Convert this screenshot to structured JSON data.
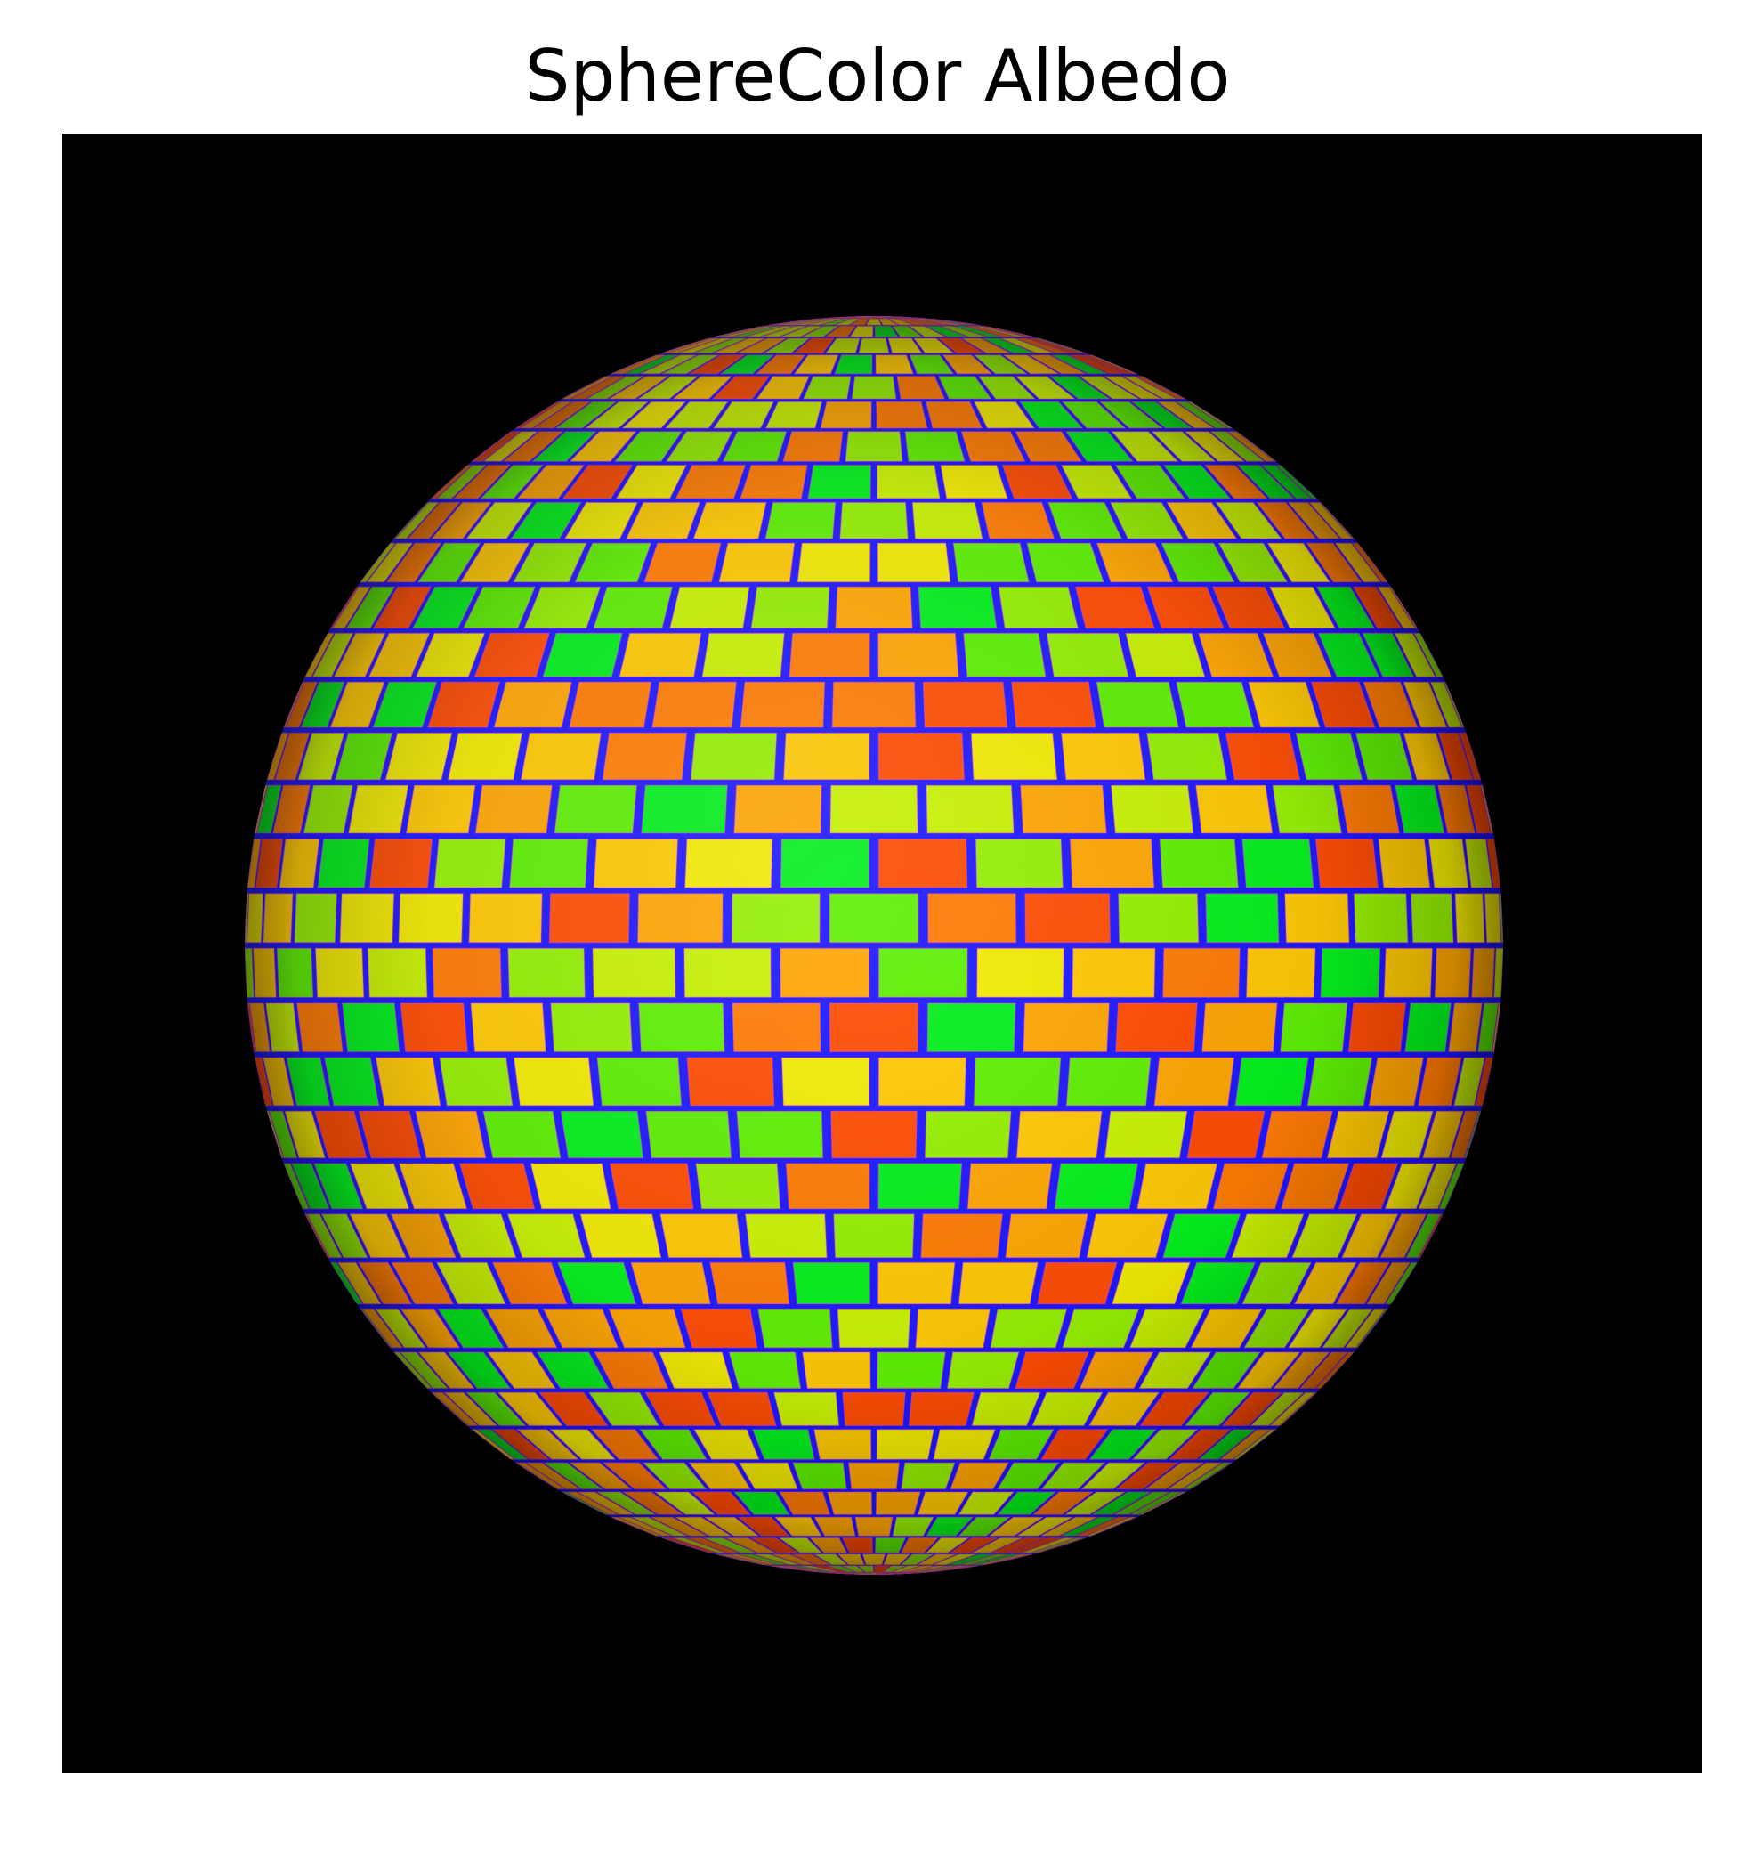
{
  "figure": {
    "title": "SphereColor Albedo",
    "background_color": "#000000",
    "page_color": "#ffffff"
  },
  "sphere": {
    "mortar_color": "#1a14ff",
    "mortar_glow_color": "#ff3cc8",
    "brick_palette": [
      "#ff4a00",
      "#ff7a00",
      "#ffa500",
      "#ffc800",
      "#f2ea00",
      "#c8f200",
      "#94f000",
      "#5cf000",
      "#00f01a"
    ]
  }
}
